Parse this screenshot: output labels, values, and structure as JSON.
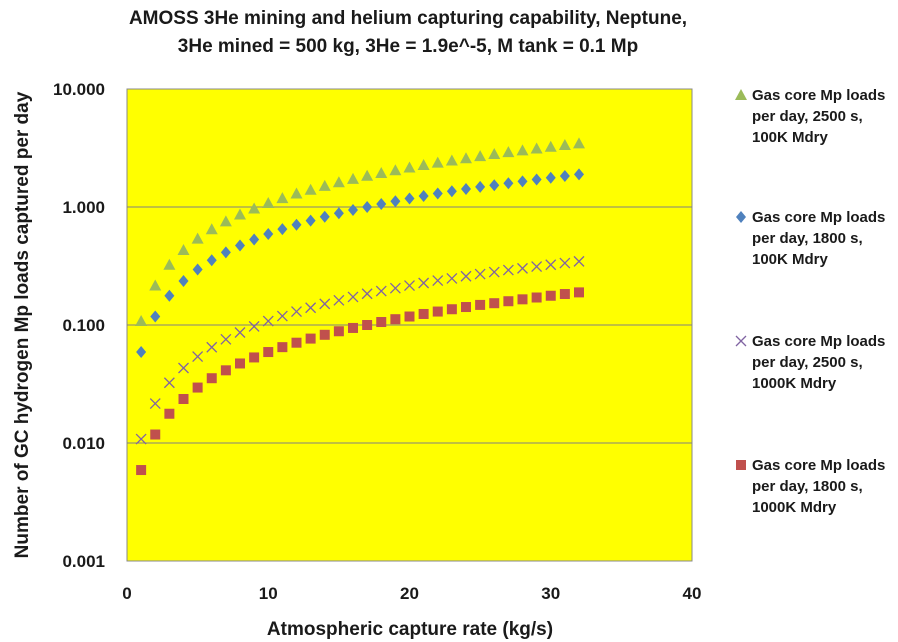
{
  "chart_data": {
    "type": "scatter",
    "title_lines": [
      "AMOSS 3He mining and helium capturing capability, Neptune,",
      "3He mined = 500 kg, 3He = 1.9e^-5, M tank = 0.1 Mp"
    ],
    "xlabel": "Atmospheric capture rate (kg/s)",
    "ylabel": "Number of GC hydrogen Mp loads captured per day",
    "xlim": [
      0,
      40
    ],
    "ylim": [
      0.001,
      10
    ],
    "y_scale": "log",
    "x_ticks": [
      "0",
      "10",
      "20",
      "30",
      "40"
    ],
    "y_ticks": [
      "0.001",
      "0.010",
      "0.100",
      "1.000",
      "10.000"
    ],
    "grid": "horizontal major gridlines",
    "plot_background": "#ffff00",
    "legend_position": "right",
    "x": [
      1,
      2,
      3,
      4,
      5,
      6,
      7,
      8,
      9,
      10,
      11,
      12,
      13,
      14,
      15,
      16,
      17,
      18,
      19,
      20,
      21,
      22,
      23,
      24,
      25,
      26,
      27,
      28,
      29,
      30,
      31,
      32
    ],
    "series": [
      {
        "name_lines": [
          "Gas core Mp loads",
          "per day, 2500 s,",
          "100K Mdry"
        ],
        "marker": "triangle",
        "color": "#9bbb59",
        "values": [
          0.108,
          0.216,
          0.324,
          0.432,
          0.54,
          0.648,
          0.756,
          0.864,
          0.972,
          1.08,
          1.19,
          1.3,
          1.4,
          1.51,
          1.62,
          1.73,
          1.84,
          1.94,
          2.05,
          2.16,
          2.27,
          2.38,
          2.48,
          2.59,
          2.7,
          2.81,
          2.92,
          3.02,
          3.13,
          3.24,
          3.35,
          3.46
        ]
      },
      {
        "name_lines": [
          "Gas core Mp loads",
          "per day, 1800 s,",
          "100K Mdry"
        ],
        "marker": "diamond",
        "color": "#4f81bd",
        "values": [
          0.059,
          0.118,
          0.177,
          0.236,
          0.295,
          0.354,
          0.413,
          0.472,
          0.531,
          0.59,
          0.649,
          0.708,
          0.767,
          0.826,
          0.885,
          0.944,
          1.0,
          1.06,
          1.12,
          1.18,
          1.24,
          1.3,
          1.36,
          1.42,
          1.48,
          1.53,
          1.59,
          1.65,
          1.71,
          1.77,
          1.83,
          1.89
        ]
      },
      {
        "name_lines": [
          "Gas core Mp loads",
          "per day, 2500 s,",
          "1000K Mdry"
        ],
        "marker": "x",
        "color": "#8064a2",
        "values": [
          0.0108,
          0.0216,
          0.0324,
          0.0432,
          0.054,
          0.0648,
          0.0756,
          0.0864,
          0.0972,
          0.108,
          0.119,
          0.13,
          0.14,
          0.151,
          0.162,
          0.173,
          0.184,
          0.194,
          0.205,
          0.216,
          0.227,
          0.238,
          0.248,
          0.259,
          0.27,
          0.281,
          0.292,
          0.302,
          0.313,
          0.324,
          0.335,
          0.346
        ]
      },
      {
        "name_lines": [
          "Gas core Mp loads",
          "per day, 1800 s,",
          "1000K Mdry"
        ],
        "marker": "square",
        "color": "#c0504d",
        "values": [
          0.0059,
          0.0118,
          0.0177,
          0.0236,
          0.0295,
          0.0354,
          0.0413,
          0.0472,
          0.0531,
          0.059,
          0.0649,
          0.0708,
          0.0767,
          0.0826,
          0.0885,
          0.0944,
          0.1,
          0.106,
          0.112,
          0.118,
          0.124,
          0.13,
          0.136,
          0.142,
          0.148,
          0.153,
          0.159,
          0.165,
          0.171,
          0.177,
          0.183,
          0.189
        ]
      }
    ]
  }
}
